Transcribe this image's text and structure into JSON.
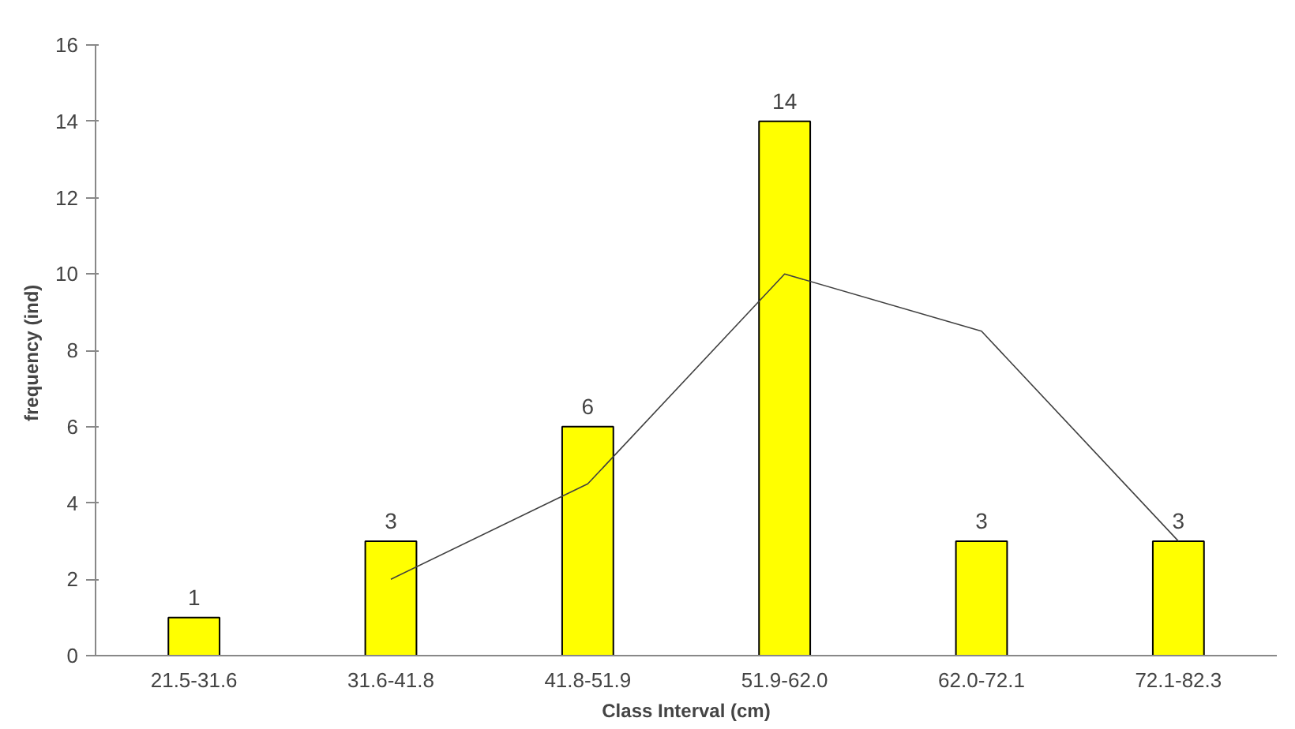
{
  "chart_data": {
    "type": "bar",
    "xlabel": "Class Interval (cm)",
    "ylabel": "frequency  (ind)",
    "categories": [
      "21.5-31.6",
      "31.6-41.8",
      "41.8-51.9",
      "51.9-62.0",
      "62.0-72.1",
      "72.1-82.3"
    ],
    "series": [
      {
        "color": "#ffff00",
        "values": [
          1,
          3,
          6,
          14,
          3,
          3
        ],
        "value_labels": [
          "1",
          "3",
          "6",
          "14",
          "3",
          "3"
        ]
      },
      {
        "type": "line",
        "color": "#404040",
        "values": [
          null,
          2,
          4.5,
          10,
          8.5,
          3
        ]
      }
    ],
    "ylim": [
      0,
      16
    ],
    "yticks": [
      0,
      2,
      4,
      6,
      8,
      10,
      12,
      14,
      16
    ],
    "grid": false
  }
}
